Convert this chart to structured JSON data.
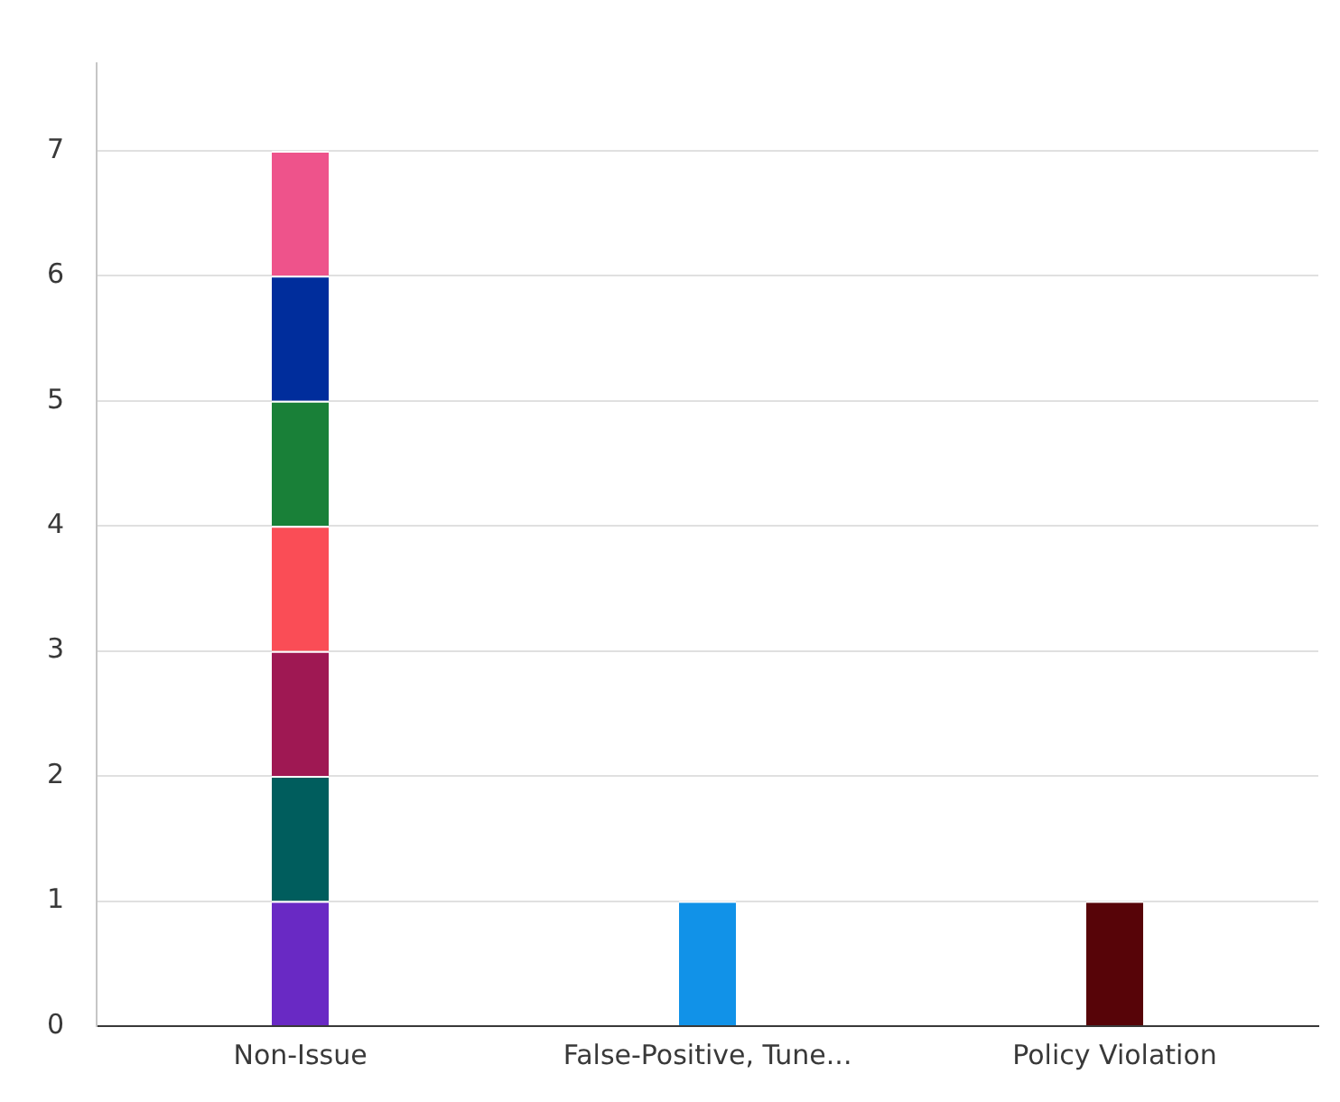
{
  "chart_data": {
    "type": "bar",
    "stacked": true,
    "categories": [
      "Non-Issue",
      "False-Positive, Tune...",
      "Policy Violation"
    ],
    "series": [
      {
        "color": "#6929c4",
        "values": [
          1,
          null,
          null
        ]
      },
      {
        "color": "#005d5d",
        "values": [
          1,
          null,
          null
        ]
      },
      {
        "color": "#9f1853",
        "values": [
          1,
          null,
          null
        ]
      },
      {
        "color": "#fa4d56",
        "values": [
          1,
          null,
          null
        ]
      },
      {
        "color": "#198038",
        "values": [
          1,
          null,
          null
        ]
      },
      {
        "color": "#002d9c",
        "values": [
          1,
          null,
          null
        ]
      },
      {
        "color": "#ee538b",
        "values": [
          1,
          null,
          null
        ]
      },
      {
        "color": "#1192e8",
        "values": [
          null,
          1,
          null
        ]
      },
      {
        "color": "#570408",
        "values": [
          null,
          null,
          1
        ]
      }
    ],
    "ylim": [
      0,
      7.7
    ],
    "yticks": [
      0,
      1,
      2,
      3,
      4,
      5,
      6,
      7
    ],
    "grid": "y",
    "legend": false
  }
}
